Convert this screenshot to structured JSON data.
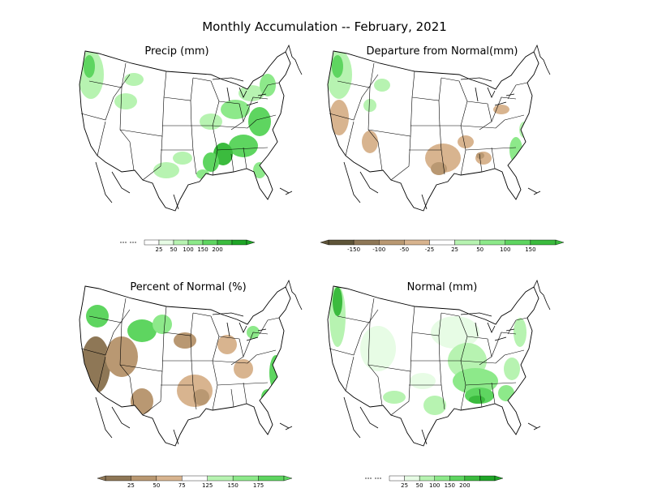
{
  "title": "Monthly Accumulation -- February, 2021",
  "colors": {
    "g1": "#e7fce5",
    "g2": "#b7f3b1",
    "g3": "#8de98a",
    "g4": "#5ed560",
    "g5": "#3bbb3e",
    "g6": "#1fa527",
    "b1": "#d8b48f",
    "b2": "#b99872",
    "b3": "#8e7756",
    "b4": "#5e5438"
  },
  "panels": [
    {
      "title": "Precip (mm)",
      "legend_ticks": [
        "25",
        "50",
        "100",
        "150",
        "200"
      ]
    },
    {
      "title": "Departure from Normal(mm)",
      "legend_ticks": [
        "-150",
        "-100",
        "-50",
        "-25",
        "25",
        "50",
        "100",
        "150"
      ]
    },
    {
      "title": "Percent of Normal (%)",
      "legend_ticks": [
        "25",
        "50",
        "75",
        "125",
        "150",
        "175"
      ]
    },
    {
      "title": "Normal (mm)",
      "legend_ticks": [
        "25",
        "50",
        "100",
        "150",
        "200"
      ]
    }
  ]
}
